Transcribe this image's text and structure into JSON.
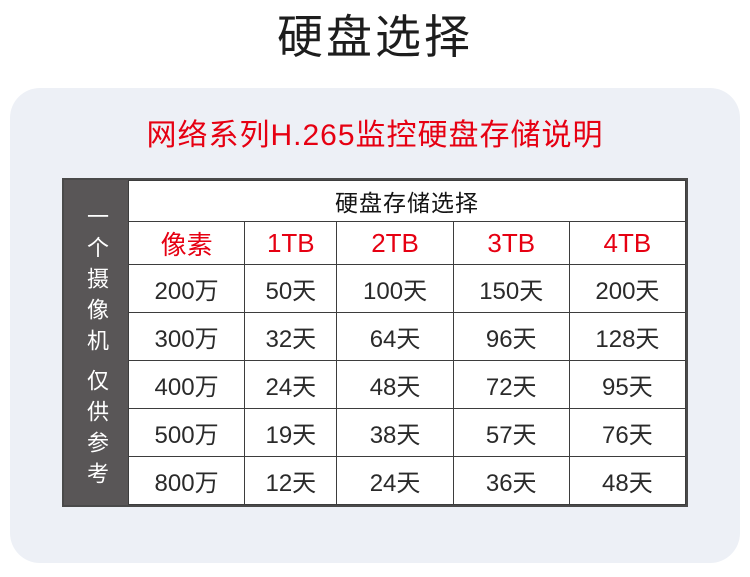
{
  "page": {
    "title": "硬盘选择"
  },
  "card": {
    "subtitle": "网络系列H.265监控硬盘存储说明",
    "side_label_top": "一个摄像机",
    "side_label_bottom": "仅供参考"
  },
  "table": {
    "header": "硬盘存储选择",
    "columns": [
      "像素",
      "1TB",
      "2TB",
      "3TB",
      "4TB"
    ],
    "rows": [
      [
        "200万",
        "50天",
        "100天",
        "150天",
        "200天"
      ],
      [
        "300万",
        "32天",
        "64天",
        "96天",
        "128天"
      ],
      [
        "400万",
        "24天",
        "48天",
        "72天",
        "95天"
      ],
      [
        "500万",
        "19天",
        "38天",
        "57天",
        "76天"
      ],
      [
        "800万",
        "12天",
        "24天",
        "36天",
        "48天"
      ]
    ]
  },
  "colors": {
    "accent_red": "#e60012",
    "sidebar_gray": "#595657",
    "card_bg": "#edf0f6",
    "border_dark": "#4a4a4a"
  }
}
